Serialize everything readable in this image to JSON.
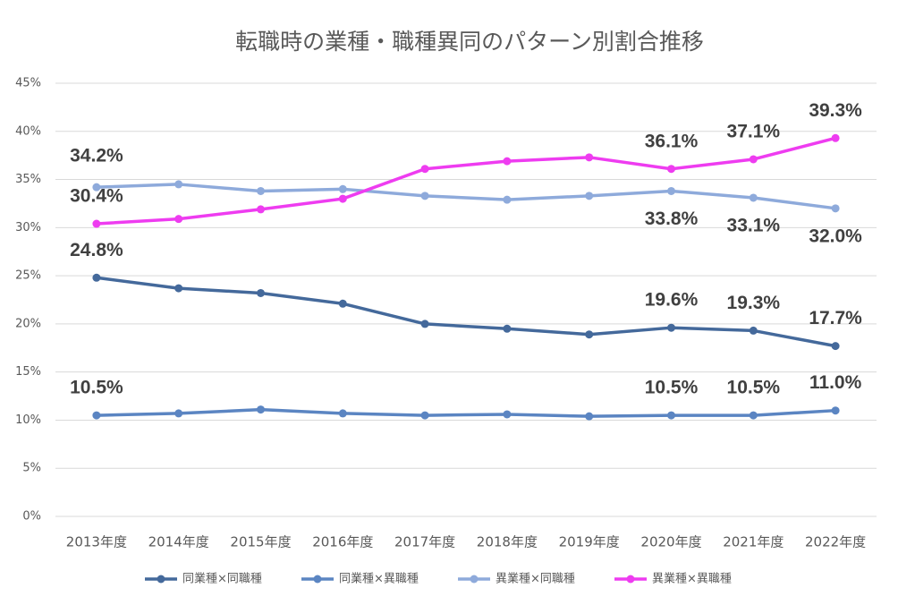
{
  "chart_data": {
    "type": "line",
    "title": "転職時の業種・職種異同のパターン別割合推移",
    "categories": [
      "2013年度",
      "2014年度",
      "2015年度",
      "2016年度",
      "2017年度",
      "2018年度",
      "2019年度",
      "2020年度",
      "2021年度",
      "2022年度"
    ],
    "series": [
      {
        "name": "同業種×同職種",
        "color": "#44699b",
        "values": [
          24.8,
          23.7,
          23.2,
          22.1,
          20.0,
          19.5,
          18.9,
          19.6,
          19.3,
          17.7
        ],
        "value_labels": [
          "24.8%",
          null,
          null,
          null,
          null,
          null,
          null,
          "19.6%",
          "19.3%",
          "17.7%"
        ]
      },
      {
        "name": "同業種×異職種",
        "color": "#5b85c2",
        "values": [
          10.5,
          10.7,
          11.1,
          10.7,
          10.5,
          10.6,
          10.4,
          10.5,
          10.5,
          11.0
        ],
        "value_labels": [
          "10.5%",
          null,
          null,
          null,
          null,
          null,
          null,
          "10.5%",
          "10.5%",
          "11.0%"
        ]
      },
      {
        "name": "異業種×同職種",
        "color": "#8eaadb",
        "values": [
          34.2,
          34.5,
          33.8,
          34.0,
          33.3,
          32.9,
          33.3,
          33.8,
          33.1,
          32.0
        ],
        "value_labels": [
          "34.2%",
          null,
          null,
          null,
          null,
          null,
          null,
          "33.8%",
          "33.1%",
          "32.0%"
        ]
      },
      {
        "name": "異業種×異職種",
        "color": "#ee3cf0",
        "values": [
          30.4,
          30.9,
          31.9,
          33.0,
          36.1,
          36.9,
          37.3,
          36.1,
          37.1,
          39.3
        ],
        "value_labels": [
          "30.4%",
          null,
          null,
          null,
          null,
          null,
          null,
          "36.1%",
          "37.1%",
          "39.3%"
        ]
      }
    ],
    "ylim": [
      0,
      45
    ],
    "yticks": [
      {
        "value": 0,
        "label": "0%"
      },
      {
        "value": 5,
        "label": "5%"
      },
      {
        "value": 10,
        "label": "10%"
      },
      {
        "value": 15,
        "label": "15%"
      },
      {
        "value": 20,
        "label": "20%"
      },
      {
        "value": 25,
        "label": "25%"
      },
      {
        "value": 30,
        "label": "30%"
      },
      {
        "value": 35,
        "label": "35%"
      },
      {
        "value": 40,
        "label": "40%"
      },
      {
        "value": 45,
        "label": "45%"
      }
    ],
    "grid": true,
    "legend": "bottom"
  }
}
